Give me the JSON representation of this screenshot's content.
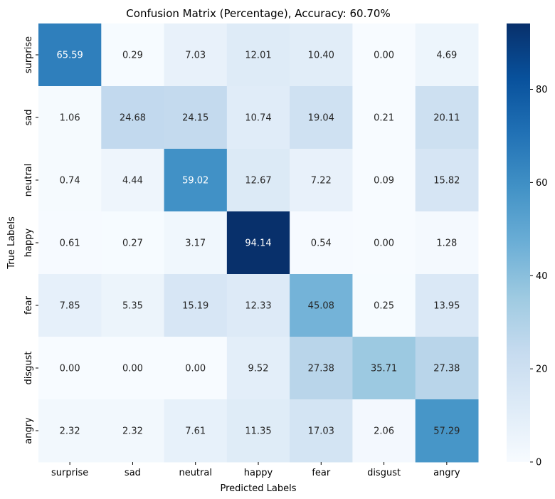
{
  "chart_data": {
    "type": "heatmap",
    "title": "Confusion Matrix (Percentage), Accuracy: 60.70%",
    "xlabel": "Predicted Labels",
    "ylabel": "True Labels",
    "x_categories": [
      "surprise",
      "sad",
      "neutral",
      "happy",
      "fear",
      "disgust",
      "angry"
    ],
    "y_categories": [
      "surprise",
      "sad",
      "neutral",
      "happy",
      "fear",
      "disgust",
      "angry"
    ],
    "values": [
      [
        65.59,
        0.29,
        7.03,
        12.01,
        10.4,
        0.0,
        4.69
      ],
      [
        1.06,
        24.68,
        24.15,
        10.74,
        19.04,
        0.21,
        20.11
      ],
      [
        0.74,
        4.44,
        59.02,
        12.67,
        7.22,
        0.09,
        15.82
      ],
      [
        0.61,
        0.27,
        3.17,
        94.14,
        0.54,
        0.0,
        1.28
      ],
      [
        7.85,
        5.35,
        15.19,
        12.33,
        45.08,
        0.25,
        13.95
      ],
      [
        0.0,
        0.0,
        0.0,
        9.52,
        27.38,
        35.71,
        27.38
      ],
      [
        2.32,
        2.32,
        7.61,
        11.35,
        17.03,
        2.06,
        57.29
      ]
    ],
    "value_format": "0.00",
    "colormap": "Blues",
    "vmin": 0,
    "vmax": 94.14,
    "colorbar_ticks": [
      0,
      20,
      40,
      60,
      80
    ]
  }
}
